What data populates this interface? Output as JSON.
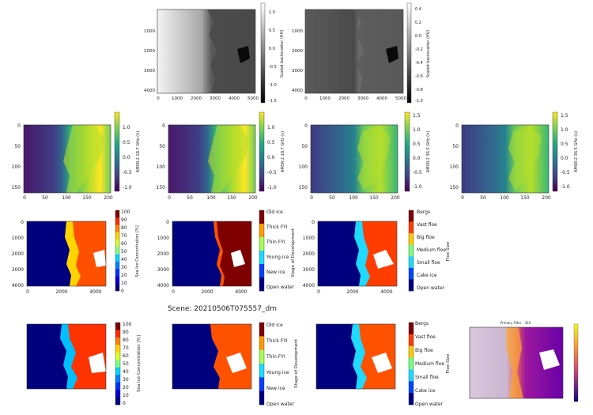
{
  "scene_label": "Scene: 20210506T075557_dm",
  "colors": {
    "viridis": [
      "#440154",
      "#482878",
      "#3e4989",
      "#31688e",
      "#26828e",
      "#1f9e89",
      "#35b779",
      "#6ece58",
      "#b5de2b",
      "#fde725"
    ],
    "jet": [
      "#00007f",
      "#0000ff",
      "#007fff",
      "#00ffff",
      "#7fff7f",
      "#ffff00",
      "#ff7f00",
      "#ff0000",
      "#7f0000"
    ],
    "gray": [
      "#ffffff",
      "#000000"
    ],
    "plasma": [
      "#0d0887",
      "#6a00a8",
      "#b12a90",
      "#e16462",
      "#fca636",
      "#f0f921"
    ],
    "stage": [
      "#00007f",
      "#1466ff",
      "#1fd9ff",
      "#a6ff56",
      "#ffba00",
      "#ff5200",
      "#7f0000"
    ],
    "floe": [
      "#00007f",
      "#0046ff",
      "#1fd9ff",
      "#76ff80",
      "#ffc800",
      "#ff3d00",
      "#7f0000"
    ]
  },
  "chart_data": [
    {
      "type": "heatmap",
      "panel": "sar-hh",
      "cmap": "gray",
      "xticks": [
        "0",
        "1000",
        "2000",
        "3000",
        "4000",
        "5000"
      ],
      "yticks": [
        "1000",
        "2000",
        "3000",
        "4000"
      ],
      "colorbar_label": "Scaled backscatter (HH)",
      "colorbar_ticks": [
        "1.0",
        "0.5",
        "0.0",
        "-0.5",
        "-1.0",
        "-1.5"
      ],
      "clim": [
        -1.5,
        1.0
      ]
    },
    {
      "type": "heatmap",
      "panel": "sar-hv",
      "cmap": "gray",
      "xticks": [
        "0",
        "1000",
        "2000",
        "3000",
        "4000",
        "5000"
      ],
      "yticks": [
        "1000",
        "2000",
        "3000",
        "4000"
      ],
      "colorbar_label": "Scaled backscatter (HV)",
      "colorbar_ticks": [
        "0.4",
        "0.2",
        "0.0",
        "-0.2",
        "-0.4",
        "-0.6",
        "-0.8",
        "-1.0"
      ],
      "clim": [
        -1.0,
        0.4
      ]
    },
    {
      "type": "heatmap",
      "panel": "amsr-18h",
      "cmap": "viridis",
      "xticks": [
        "0",
        "50",
        "100",
        "150",
        "200"
      ],
      "yticks": [
        "0",
        "50",
        "100",
        "150"
      ],
      "colorbar_label": "AMSR-2 18.7 GHz (h)",
      "colorbar_ticks": [
        "1.0",
        "0.5",
        "0.0",
        "-0.5",
        "-1.0"
      ],
      "clim": [
        -1.0,
        1.0
      ]
    },
    {
      "type": "heatmap",
      "panel": "amsr-18v",
      "cmap": "viridis",
      "xticks": [
        "0",
        "50",
        "100",
        "150",
        "200"
      ],
      "yticks": [
        "0",
        "50",
        "100",
        "150"
      ],
      "colorbar_label": "AMSR-2 18.7 GHz (v)",
      "colorbar_ticks": [
        "1.0",
        "0.5",
        "0.0",
        "-0.5",
        "-1.0"
      ],
      "clim": [
        -1.0,
        1.0
      ]
    },
    {
      "type": "heatmap",
      "panel": "amsr-36h",
      "cmap": "viridis",
      "xticks": [
        "0",
        "50",
        "100",
        "150",
        "200"
      ],
      "yticks": [
        "0",
        "50",
        "100",
        "150"
      ],
      "colorbar_label": "AMSR-2 36.5 GHz (h)",
      "colorbar_ticks": [
        "1.5",
        "1.0",
        "0.5",
        "0.0",
        "-0.5",
        "-1.0"
      ],
      "clim": [
        -1.0,
        1.5
      ]
    },
    {
      "type": "heatmap",
      "panel": "amsr-36v",
      "cmap": "viridis",
      "xticks": [
        "0",
        "50",
        "100",
        "150",
        "200"
      ],
      "yticks": [
        "0",
        "50",
        "100",
        "150"
      ],
      "colorbar_label": "AMSR-2 36.5 GHz (v)",
      "colorbar_ticks": [
        "1.5",
        "1.0",
        "0.5",
        "0.0",
        "-0.5",
        "-1.0"
      ],
      "clim": [
        -1.0,
        1.5
      ]
    },
    {
      "type": "heatmap",
      "panel": "sic-target",
      "cmap": "jet",
      "xticks": [
        "0",
        "2000",
        "4000"
      ],
      "yticks": [
        "0",
        "1000",
        "2000",
        "3000",
        "4000"
      ],
      "colorbar_label": "Sea Ice Concentration [%]",
      "colorbar_ticks": [
        "100",
        "90",
        "80",
        "70",
        "60",
        "50",
        "40",
        "30",
        "20",
        "10",
        "0"
      ],
      "clim": [
        0,
        100
      ]
    },
    {
      "type": "heatmap",
      "panel": "sod-target",
      "cmap": "stage",
      "xticks": [
        "0",
        "2000",
        "4000"
      ],
      "yticks": [
        "0",
        "1000",
        "2000",
        "3000",
        "4000"
      ],
      "colorbar_label": "",
      "colorbar_ticks": [
        "Old ice",
        "Thick FYI",
        "Thin FYI",
        "Young ice",
        "New ice",
        "Open water"
      ]
    },
    {
      "type": "heatmap",
      "panel": "floe-target",
      "cmap": "floe",
      "xticks": [
        "0",
        "2000",
        "4000"
      ],
      "yticks": [
        "0",
        "1000",
        "2000",
        "3000",
        "4000"
      ],
      "ylabel": "Stage of Development",
      "colorbar_label": "Floe Size",
      "colorbar_ticks": [
        "Bergs",
        "Vast floe",
        "Big floe",
        "Medium floe",
        "Small floe",
        "Cake ice",
        "Open water"
      ]
    },
    {
      "type": "heatmap",
      "panel": "sic-pred",
      "cmap": "jet",
      "colorbar_label": "Sea Ice Concentration [%]",
      "colorbar_ticks": [
        "100",
        "90",
        "80",
        "70",
        "60",
        "50",
        "40",
        "30",
        "20",
        "10",
        "0"
      ],
      "clim": [
        0,
        100
      ]
    },
    {
      "type": "heatmap",
      "panel": "sod-pred",
      "cmap": "stage",
      "colorbar_label": "",
      "ylabel": "Stage of Development",
      "colorbar_ticks": [
        "Old ice",
        "Thick FYI",
        "Thin FYI",
        "Young ice",
        "New ice",
        "Open water"
      ]
    },
    {
      "type": "heatmap",
      "panel": "floe-pred",
      "cmap": "floe",
      "colorbar_label": "Floe Size",
      "colorbar_ticks": [
        "Bergs",
        "Vast floe",
        "Big floe",
        "Medium floe",
        "Small floe",
        "Cake ice",
        "Open water"
      ]
    },
    {
      "type": "heatmap",
      "panel": "primary-filter",
      "cmap": "plasma",
      "title": "Primary Filter - 320",
      "colorbar_label": ""
    }
  ]
}
